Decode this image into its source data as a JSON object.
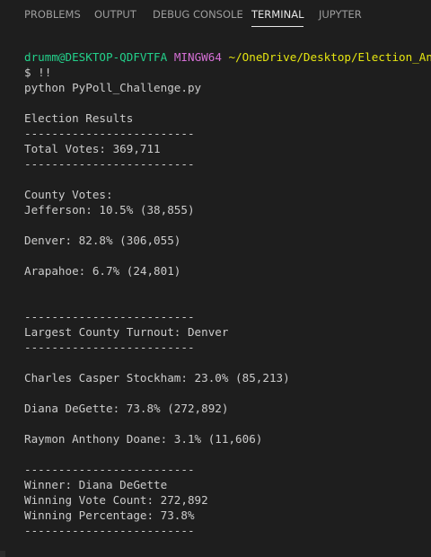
{
  "tabs": [
    "PROBLEMS",
    "OUTPUT",
    "DEBUG CONSOLE",
    "TERMINAL",
    "JUPYTER"
  ],
  "active_tab": "TERMINAL",
  "prompt": {
    "user_host": "drumm@DESKTOP-QDFVTFA",
    "shell": "MINGW64",
    "path": "~/OneDrive/Desktop/Election_Ana",
    "command_line": "$ !!",
    "command": "python PyPoll_Challenge.py"
  },
  "output": {
    "heading": "Election Results",
    "divider": "-------------------------",
    "total_votes": "Total Votes: 369,711",
    "county_heading": "County Votes:",
    "counties": [
      "Jefferson: 10.5% (38,855)",
      "Denver: 82.8% (306,055)",
      "Arapahoe: 6.7% (24,801)"
    ],
    "largest_county": "Largest County Turnout: Denver",
    "candidates": [
      "Charles Casper Stockham: 23.0% (85,213)",
      "Diana DeGette: 73.8% (272,892)",
      "Raymon Anthony Doane: 3.1% (11,606)"
    ],
    "winner": "Winner: Diana DeGette",
    "winning_count": "Winning Vote Count: 272,892",
    "winning_percentage": "Winning Percentage: 73.8%"
  }
}
